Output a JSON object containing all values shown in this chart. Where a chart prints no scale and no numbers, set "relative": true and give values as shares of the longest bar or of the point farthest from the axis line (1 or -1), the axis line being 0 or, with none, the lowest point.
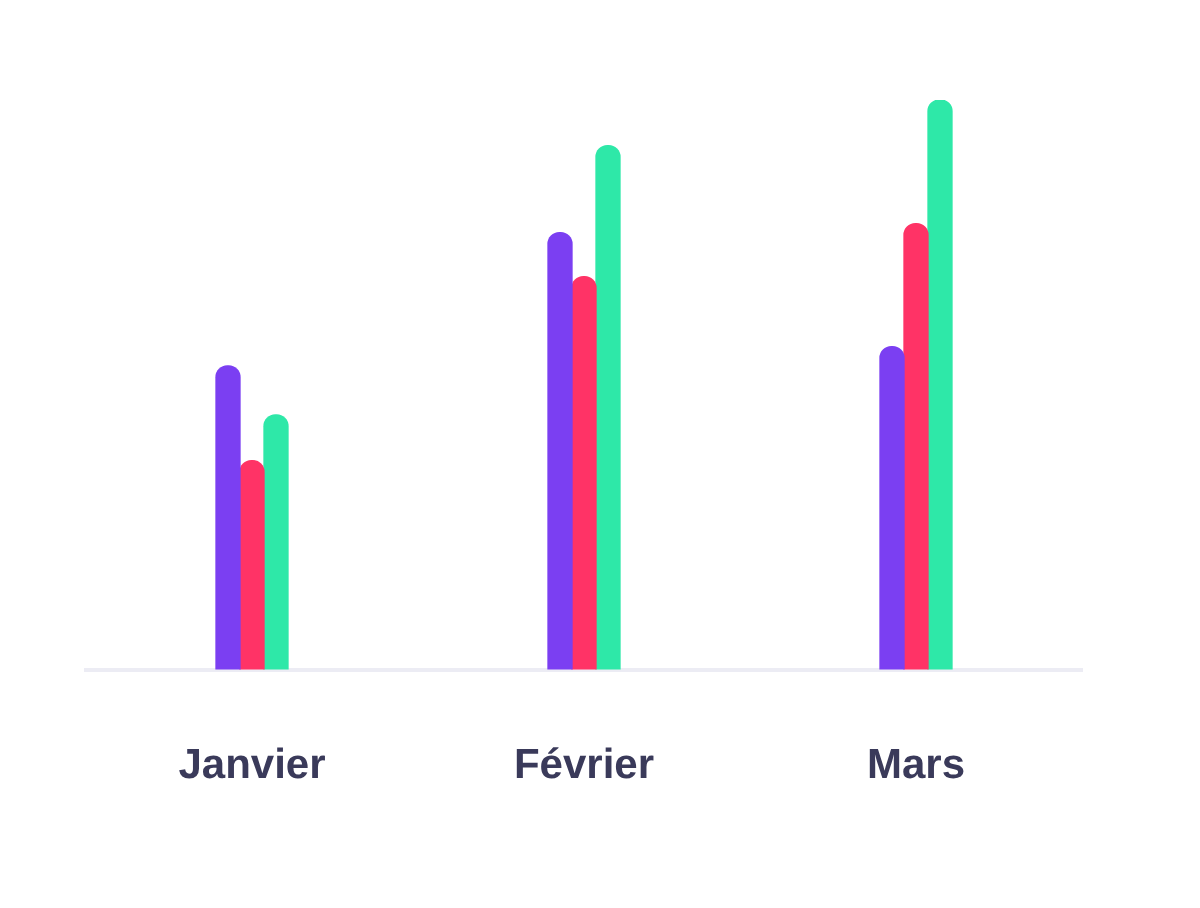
{
  "chart_data": {
    "type": "bar",
    "relative": true,
    "categories": [
      "Janvier",
      "Février",
      "Mars"
    ],
    "series": [
      {
        "color": "#7b3ff2",
        "values": [
          0.533,
          0.767,
          0.567
        ]
      },
      {
        "color": "#ff3366",
        "values": [
          0.367,
          0.69,
          0.783
        ]
      },
      {
        "color": "#2ee8a8",
        "values": [
          0.447,
          0.92,
          1
        ]
      }
    ]
  }
}
